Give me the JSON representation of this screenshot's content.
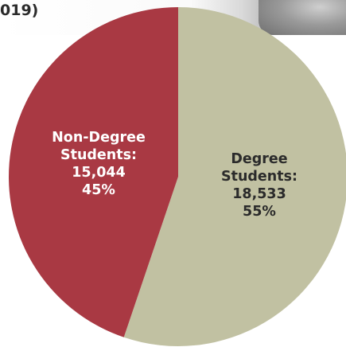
{
  "header": {
    "title_fragment": "019)"
  },
  "chart_data": {
    "type": "pie",
    "start_angle_deg": 0,
    "direction": "clockwise",
    "slices": [
      {
        "label_line1": "Degree",
        "label_line2": "Students:",
        "value": 18533,
        "value_text": "18,533",
        "percent": 55,
        "percent_text": "55%",
        "color": "#c1c1a2",
        "label_color": "#2b2b2b"
      },
      {
        "label_line1": "Non-Degree",
        "label_line2": "Students:",
        "value": 15044,
        "value_text": "15,044",
        "percent": 45,
        "percent_text": "45%",
        "color": "#a93943",
        "label_color": "#ffffff"
      }
    ]
  }
}
